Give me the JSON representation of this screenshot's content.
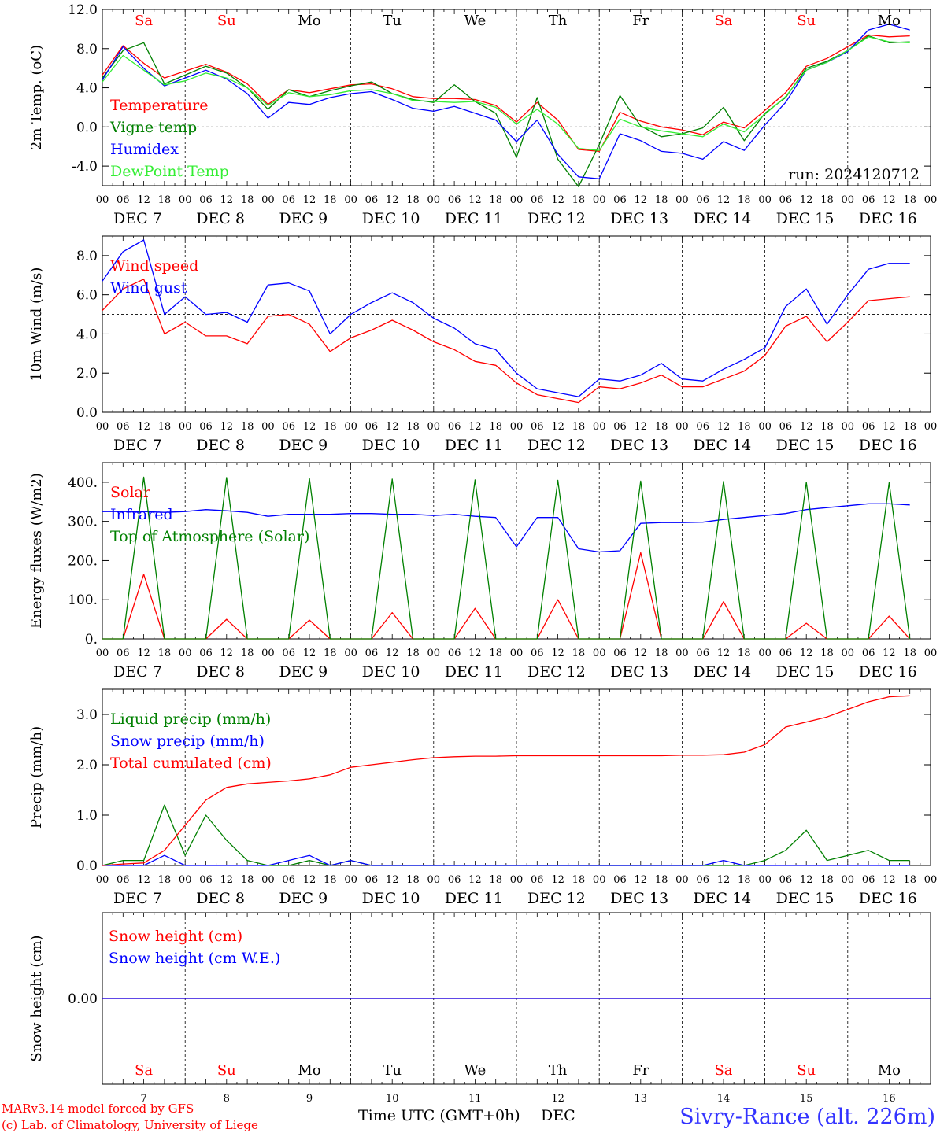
{
  "figure": {
    "run_label": "run: 2024120712",
    "credit_line_1": "MARv3.14 model forced by GFS",
    "credit_line_2": "(c) Lab. of Climatology, University of Liege",
    "xaxis_title": "Time UTC (GMT+0h)",
    "xaxis_month": "DEC",
    "station_label": "Sivry-Rance (alt. 226m)",
    "colors": {
      "red": "#ff0000",
      "green": "#008000",
      "blue": "#0000ff",
      "lightgreen": "#33ee33",
      "weekend": "#ff0000",
      "weekday": "#000000"
    }
  },
  "time_axis": {
    "days": [
      "7",
      "8",
      "9",
      "10",
      "11",
      "12",
      "13",
      "14",
      "15",
      "16"
    ],
    "day_labels": [
      "DEC  7",
      "DEC  8",
      "DEC  9",
      "DEC 10",
      "DEC 11",
      "DEC 12",
      "DEC 13",
      "DEC 14",
      "DEC 15",
      "DEC 16"
    ],
    "weekdays": [
      "Sa",
      "Su",
      "Mo",
      "Tu",
      "We",
      "Th",
      "Fr",
      "Sa",
      "Su",
      "Mo"
    ],
    "weekend": [
      true,
      true,
      false,
      false,
      false,
      false,
      false,
      true,
      true,
      false
    ],
    "hour_ticks": [
      "00",
      "06",
      "12",
      "18"
    ],
    "end_tick": "00"
  },
  "chart_data": [
    {
      "type": "line",
      "ylabel": "2m Temp. (oC)",
      "ylim": [
        -6,
        12
      ],
      "yticks": [
        "12.0",
        "8.0",
        "4.0",
        "0.0",
        "-4.0"
      ],
      "ytick_values": [
        12,
        8,
        4,
        0,
        -4
      ],
      "ref_line": 0,
      "x_hours": [
        0,
        6,
        12,
        18,
        24,
        30,
        36,
        42,
        48,
        54,
        60,
        66,
        72,
        78,
        84,
        90,
        96,
        102,
        108,
        114,
        120,
        126,
        132,
        138,
        144,
        150,
        156,
        162,
        168,
        174,
        180,
        186,
        192,
        198,
        204,
        210,
        216,
        222,
        228,
        234
      ],
      "series": [
        {
          "name": "Temperature",
          "color": "#ff0000",
          "values": [
            5.3,
            8.3,
            6.5,
            5.0,
            5.7,
            6.4,
            5.6,
            4.4,
            2.3,
            3.8,
            3.5,
            3.9,
            4.3,
            4.4,
            3.9,
            3.1,
            2.9,
            2.9,
            2.8,
            2.2,
            0.5,
            2.5,
            0.7,
            -2.3,
            -2.5,
            1.5,
            0.6,
            0.0,
            -0.3,
            -0.8,
            0.5,
            -0.1,
            1.7,
            3.5,
            6.2,
            7.0,
            8.2,
            9.4,
            9.2,
            9.3
          ]
        },
        {
          "name": "Vigne temp",
          "color": "#008000",
          "values": [
            5.0,
            7.8,
            8.6,
            4.4,
            5.3,
            6.2,
            5.5,
            4.0,
            1.8,
            3.8,
            3.1,
            3.7,
            4.2,
            4.6,
            3.4,
            2.8,
            2.5,
            4.3,
            2.6,
            1.4,
            -3.1,
            3.0,
            -3.3,
            -6.1,
            -1.8,
            3.2,
            0.1,
            -1.0,
            -0.7,
            -0.1,
            2.0,
            -1.4,
            1.4,
            3.0,
            6.0,
            6.7,
            7.8,
            9.3,
            8.6,
            8.7
          ]
        },
        {
          "name": "Humidex",
          "color": "#0000ff",
          "values": [
            4.8,
            8.2,
            6.0,
            4.2,
            5.0,
            5.8,
            4.9,
            3.4,
            0.9,
            2.5,
            2.3,
            3.0,
            3.4,
            3.6,
            2.8,
            1.9,
            1.6,
            2.1,
            1.4,
            0.7,
            -1.5,
            0.7,
            -2.8,
            -5.1,
            -5.3,
            -0.7,
            -1.4,
            -2.5,
            -2.7,
            -3.3,
            -1.5,
            -2.4,
            0.2,
            2.5,
            5.8,
            6.6,
            7.7,
            9.9,
            10.5,
            9.9
          ]
        },
        {
          "name": "DewPoint Temp",
          "color": "#33ee33",
          "values": [
            4.6,
            7.3,
            5.8,
            4.3,
            4.7,
            5.5,
            5.0,
            4.0,
            2.2,
            3.5,
            3.1,
            3.3,
            3.7,
            3.8,
            3.4,
            2.7,
            2.6,
            2.5,
            2.6,
            2.0,
            0.3,
            1.8,
            0.3,
            -2.2,
            -2.4,
            0.8,
            0.0,
            -0.4,
            -0.7,
            -1.0,
            0.3,
            -0.5,
            1.3,
            3.1,
            5.8,
            6.6,
            7.8,
            9.2,
            8.7,
            8.6
          ]
        }
      ]
    },
    {
      "type": "line",
      "ylabel": "10m Wind (m/s)",
      "ylim": [
        0,
        9
      ],
      "yticks": [
        "8.0",
        "6.0",
        "4.0",
        "2.0",
        "0.0"
      ],
      "ytick_values": [
        8,
        6,
        4,
        2,
        0
      ],
      "ref_line": 5,
      "x_hours": [
        0,
        6,
        12,
        18,
        24,
        30,
        36,
        42,
        48,
        54,
        60,
        66,
        72,
        78,
        84,
        90,
        96,
        102,
        108,
        114,
        120,
        126,
        132,
        138,
        144,
        150,
        156,
        162,
        168,
        174,
        180,
        186,
        192,
        198,
        204,
        210,
        216,
        222,
        228,
        234
      ],
      "series": [
        {
          "name": "Wind speed",
          "color": "#ff0000",
          "values": [
            5.2,
            6.3,
            6.8,
            4.0,
            4.6,
            3.9,
            3.9,
            3.5,
            4.9,
            5.0,
            4.5,
            3.1,
            3.8,
            4.2,
            4.7,
            4.2,
            3.6,
            3.2,
            2.6,
            2.4,
            1.5,
            0.9,
            0.7,
            0.5,
            1.3,
            1.2,
            1.5,
            1.9,
            1.3,
            1.3,
            1.7,
            2.1,
            2.9,
            4.4,
            4.9,
            3.6,
            4.6,
            5.7,
            5.8,
            5.9
          ]
        },
        {
          "name": "Wind gust",
          "color": "#0000ff",
          "values": [
            6.7,
            8.2,
            8.8,
            5.0,
            5.9,
            5.0,
            5.1,
            4.6,
            6.5,
            6.6,
            6.2,
            4.0,
            5.0,
            5.6,
            6.1,
            5.6,
            4.8,
            4.3,
            3.5,
            3.2,
            2.0,
            1.2,
            1.0,
            0.8,
            1.7,
            1.6,
            1.9,
            2.5,
            1.7,
            1.6,
            2.2,
            2.7,
            3.3,
            5.4,
            6.3,
            4.5,
            6.0,
            7.3,
            7.6,
            7.6
          ]
        }
      ]
    },
    {
      "type": "line",
      "ylabel": "Energy fluxes (W/m2)",
      "ylim": [
        0,
        450
      ],
      "yticks": [
        "400.",
        "300.",
        "200.",
        "100.",
        "0."
      ],
      "ytick_values": [
        400,
        300,
        200,
        100,
        0
      ],
      "x_hours": [
        0,
        6,
        12,
        18,
        24,
        30,
        36,
        42,
        48,
        54,
        60,
        66,
        72,
        78,
        84,
        90,
        96,
        102,
        108,
        114,
        120,
        126,
        132,
        138,
        144,
        150,
        156,
        162,
        168,
        174,
        180,
        186,
        192,
        198,
        204,
        210,
        216,
        222,
        228,
        234
      ],
      "series": [
        {
          "name": "Solar",
          "color": "#ff0000",
          "values": [
            0,
            0,
            165,
            0,
            0,
            0,
            50,
            0,
            0,
            0,
            48,
            0,
            0,
            0,
            67,
            0,
            0,
            0,
            78,
            0,
            0,
            0,
            100,
            0,
            0,
            0,
            220,
            0,
            0,
            0,
            95,
            0,
            0,
            0,
            40,
            0,
            0,
            0,
            58,
            0
          ]
        },
        {
          "name": "Infrared",
          "color": "#0000ff",
          "values": [
            325,
            325,
            325,
            323,
            325,
            330,
            327,
            323,
            313,
            318,
            318,
            318,
            320,
            320,
            318,
            318,
            315,
            318,
            313,
            310,
            235,
            310,
            310,
            230,
            222,
            225,
            295,
            297,
            297,
            298,
            305,
            310,
            315,
            320,
            330,
            335,
            340,
            345,
            345,
            342
          ]
        },
        {
          "name": "Top of Atmosphere (Solar)",
          "color": "#008000",
          "values": [
            0,
            0,
            413,
            0,
            0,
            0,
            412,
            0,
            0,
            0,
            410,
            0,
            0,
            0,
            408,
            0,
            0,
            0,
            406,
            0,
            0,
            0,
            405,
            0,
            0,
            0,
            403,
            0,
            0,
            0,
            402,
            0,
            0,
            0,
            400,
            0,
            0,
            0,
            399,
            0
          ]
        }
      ]
    },
    {
      "type": "line",
      "ylabel": "Precip (mm/h)",
      "ylim": [
        0,
        3.5
      ],
      "yticks": [
        "3.0",
        "2.0",
        "1.0",
        "0.0"
      ],
      "ytick_values": [
        3,
        2,
        1,
        0
      ],
      "x_hours": [
        0,
        6,
        12,
        18,
        24,
        30,
        36,
        42,
        48,
        54,
        60,
        66,
        72,
        78,
        84,
        90,
        96,
        102,
        108,
        114,
        120,
        126,
        132,
        138,
        144,
        150,
        156,
        162,
        168,
        174,
        180,
        186,
        192,
        198,
        204,
        210,
        216,
        222,
        228,
        234
      ],
      "series": [
        {
          "name": "Liquid precip (mm/h)",
          "color": "#008000",
          "values": [
            0.0,
            0.1,
            0.1,
            1.2,
            0.2,
            1.0,
            0.5,
            0.1,
            0.0,
            0.0,
            0.1,
            0.0,
            0.1,
            0.0,
            0.0,
            0.0,
            0.0,
            0.0,
            0.0,
            0.0,
            0.0,
            0.0,
            0.0,
            0.0,
            0.0,
            0.0,
            0.0,
            0.0,
            0.0,
            0.0,
            0.0,
            0.0,
            0.1,
            0.3,
            0.7,
            0.1,
            0.2,
            0.3,
            0.1,
            0.1
          ]
        },
        {
          "name": "Snow precip (mm/h)",
          "color": "#0000ff",
          "values": [
            0.0,
            0.0,
            0.0,
            0.2,
            0.0,
            0.0,
            0.0,
            0.0,
            0.0,
            0.1,
            0.2,
            0.0,
            0.1,
            0.0,
            0.0,
            0.0,
            0.0,
            0.0,
            0.0,
            0.0,
            0.0,
            0.0,
            0.0,
            0.0,
            0.0,
            0.0,
            0.0,
            0.0,
            0.0,
            0.0,
            0.1,
            0.0,
            0.0,
            0.0,
            0.0,
            0.0,
            0.0,
            0.0,
            0.0,
            0.0
          ]
        },
        {
          "name": "Total cumulated (cm)",
          "color": "#ff0000",
          "values": [
            0.0,
            0.03,
            0.05,
            0.3,
            0.8,
            1.3,
            1.55,
            1.62,
            1.65,
            1.68,
            1.72,
            1.8,
            1.95,
            2.0,
            2.05,
            2.1,
            2.14,
            2.16,
            2.17,
            2.17,
            2.18,
            2.18,
            2.18,
            2.18,
            2.18,
            2.18,
            2.18,
            2.18,
            2.19,
            2.19,
            2.2,
            2.25,
            2.4,
            2.75,
            2.85,
            2.95,
            3.1,
            3.25,
            3.35,
            3.37
          ]
        }
      ]
    },
    {
      "type": "line",
      "ylabel": "Snow height (cm)",
      "ylim": [
        -1,
        1
      ],
      "yticks": [
        "0.00"
      ],
      "ytick_values": [
        0
      ],
      "x_hours": [
        0,
        240
      ],
      "series": [
        {
          "name": "Snow height (cm)",
          "color": "#ff0000",
          "values": [
            0,
            0
          ]
        },
        {
          "name": "Snow height (cm W.E.)",
          "color": "#0000ff",
          "values": [
            0,
            0
          ]
        }
      ]
    }
  ]
}
